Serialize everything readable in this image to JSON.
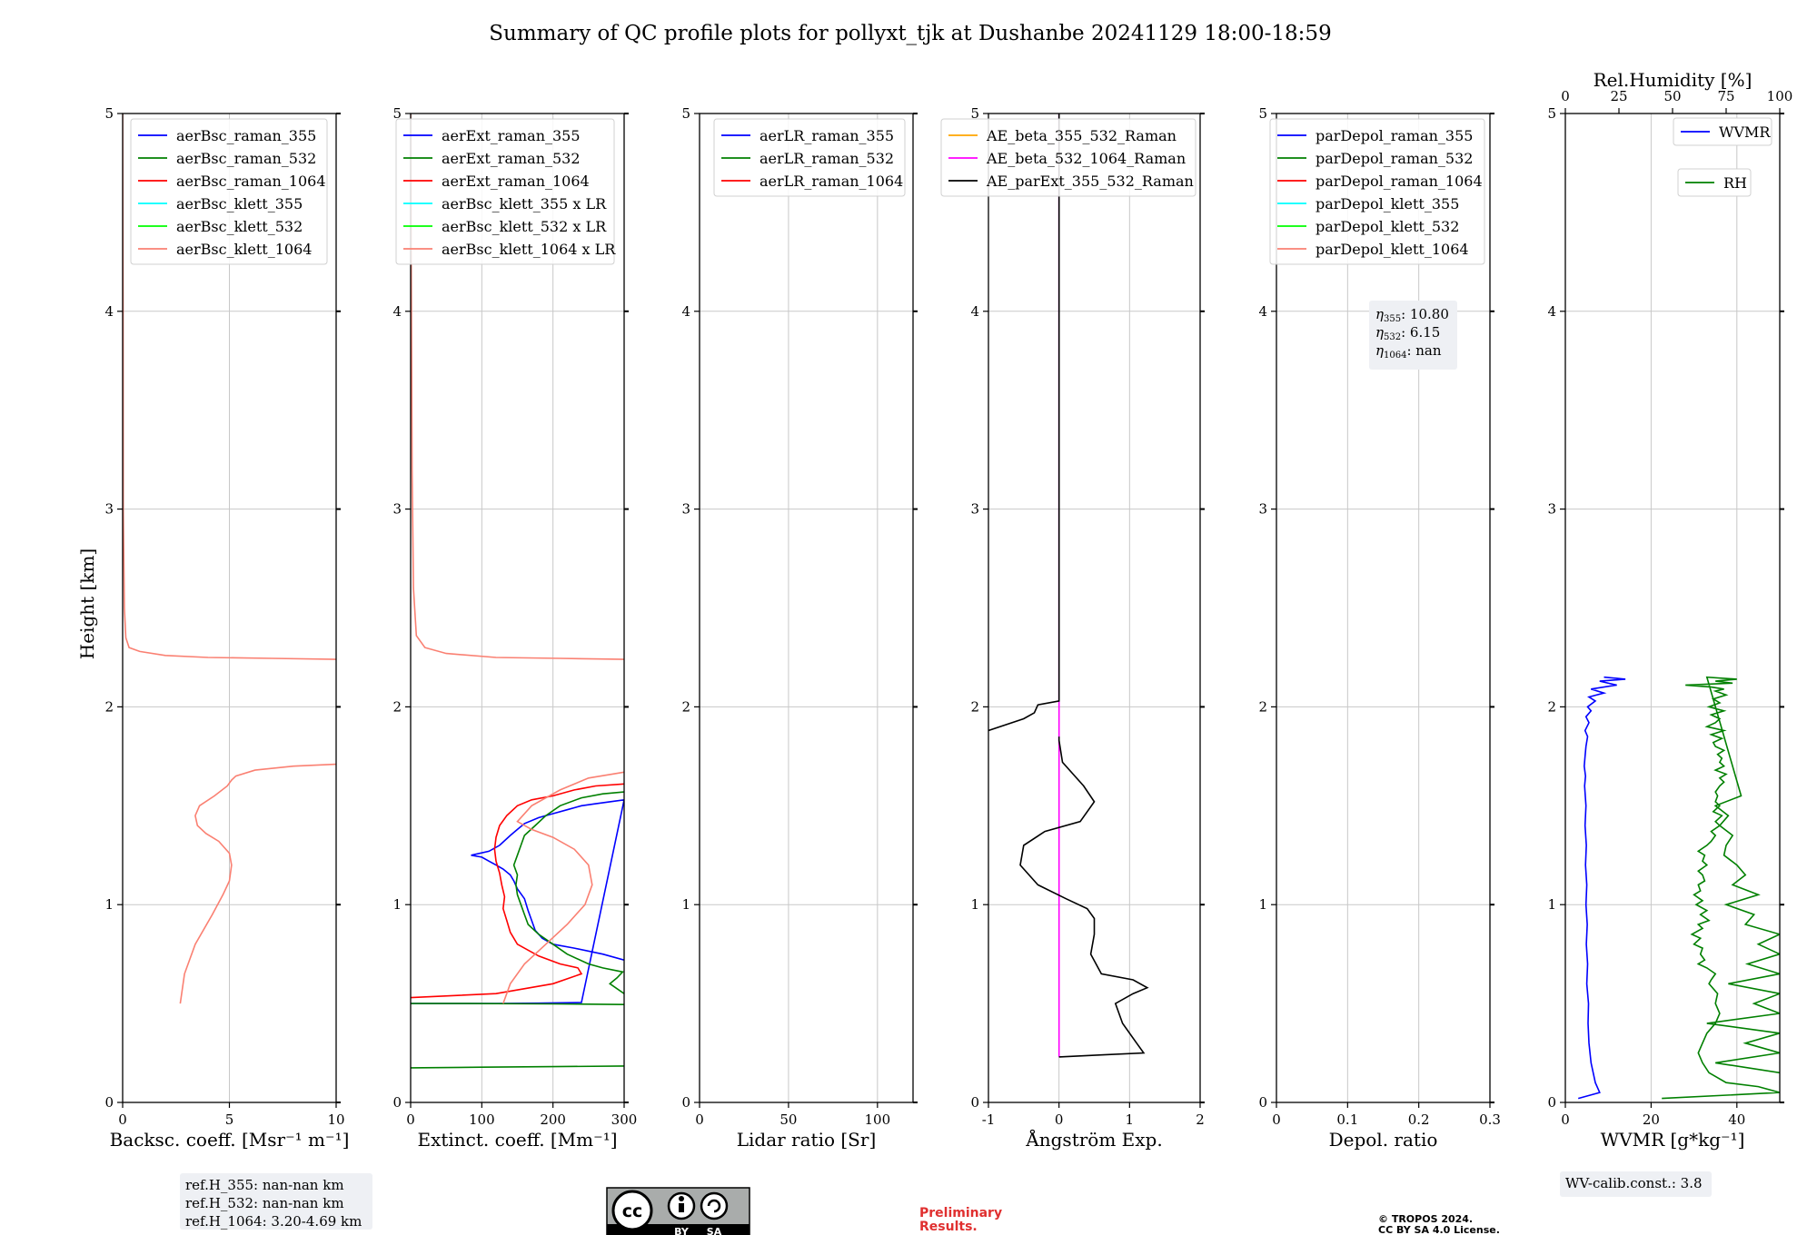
{
  "figure": {
    "title": "Summary of QC profile plots for pollyxt_tjk at Dushanbe 20241129 18:00-18:59",
    "ylabel": "Height [km]",
    "preliminary": "Preliminary\nResults.",
    "copyright": "© TROPOS 2024.\nCC BY SA 4.0 License.",
    "license_badge": {
      "text": "cc",
      "by": "BY",
      "sa": "SA"
    },
    "colors": {
      "blue": "#0000ff",
      "green": "#008000",
      "red": "#ff0000",
      "cyan": "#00ffff",
      "lime": "#00ff00",
      "salmon": "#fa8072",
      "orange": "#ffa500",
      "magenta": "#ff00ff",
      "black": "#000000",
      "grid": "#c8c8c8",
      "infobox": "#eef0f4"
    }
  },
  "chart_data": [
    {
      "type": "line",
      "xlabel": "Backsc. coeff. [Msr⁻¹ m⁻¹]",
      "ylabel": "Height [km]",
      "xlim": [
        0,
        10
      ],
      "ylim": [
        0,
        5
      ],
      "xticks": [
        0,
        5,
        10
      ],
      "yticks": [
        0,
        1,
        2,
        3,
        4,
        5
      ],
      "grid": true,
      "legend_position": "top-left",
      "series": [
        {
          "name": "aerBsc_raman_355",
          "color": "blue",
          "x": [],
          "y": []
        },
        {
          "name": "aerBsc_raman_532",
          "color": "green",
          "x": [],
          "y": []
        },
        {
          "name": "aerBsc_raman_1064",
          "color": "red",
          "x": [],
          "y": []
        },
        {
          "name": "aerBsc_klett_355",
          "color": "cyan",
          "x": [],
          "y": []
        },
        {
          "name": "aerBsc_klett_532",
          "color": "lime",
          "x": [],
          "y": []
        },
        {
          "name": "aerBsc_klett_1064",
          "color": "salmon",
          "x": [
            2.7,
            2.9,
            3.4,
            4.2,
            4.7,
            5.0,
            5.1,
            5.0,
            4.5,
            3.9,
            3.5,
            3.4,
            3.6,
            4.3,
            4.9,
            5.1,
            5.3,
            6.2,
            8.0,
            10.0
          ],
          "y": [
            0.5,
            0.65,
            0.8,
            0.95,
            1.05,
            1.12,
            1.2,
            1.26,
            1.32,
            1.36,
            1.4,
            1.45,
            1.5,
            1.55,
            1.6,
            1.63,
            1.65,
            1.68,
            1.7,
            1.71
          ]
        },
        {
          "name": "aerBsc_klett_1064",
          "color": "salmon",
          "x": [
            10.0,
            7.0,
            4.0,
            2.0,
            0.8,
            0.3,
            0.15,
            0.08,
            0.03,
            0.02,
            0.0
          ],
          "y": [
            2.24,
            2.245,
            2.25,
            2.26,
            2.28,
            2.3,
            2.35,
            2.5,
            3.0,
            4.0,
            5.0
          ]
        }
      ],
      "info_box": [
        "ref.H_355: nan-nan km",
        "ref.H_532: nan-nan km",
        "ref.H_1064: 3.20-4.69 km"
      ]
    },
    {
      "type": "line",
      "xlabel": "Extinct. coeff. [Mm⁻¹]",
      "xlim": [
        0,
        300
      ],
      "ylim": [
        0,
        5
      ],
      "xticks": [
        0,
        100,
        200,
        300
      ],
      "yticks": [
        0,
        1,
        2,
        3,
        4,
        5
      ],
      "grid": true,
      "legend_position": "top-left",
      "series": [
        {
          "name": "aerExt_raman_355",
          "color": "blue",
          "x": [
            300,
            270,
            230,
            200,
            185,
            175,
            170,
            165,
            160,
            150,
            145,
            140,
            130,
            120,
            110,
            100,
            85,
            110,
            125,
            140,
            150,
            160,
            180,
            200,
            220,
            240,
            260,
            280,
            300,
            240,
            180,
            120,
            60,
            0
          ],
          "y": [
            0.72,
            0.75,
            0.78,
            0.8,
            0.83,
            0.87,
            0.92,
            0.97,
            1.03,
            1.08,
            1.12,
            1.15,
            1.18,
            1.2,
            1.22,
            1.24,
            1.25,
            1.27,
            1.3,
            1.35,
            1.38,
            1.41,
            1.44,
            1.46,
            1.48,
            1.5,
            1.51,
            1.52,
            1.53,
            0.505,
            0.502,
            0.5,
            0.5,
            0.5
          ]
        },
        {
          "name": "aerExt_raman_532",
          "color": "green",
          "x": [
            300,
            280,
            290,
            298,
            270,
            250,
            220,
            200,
            180,
            165,
            160,
            155,
            150,
            148,
            150,
            145,
            150,
            155,
            160,
            175,
            190,
            210,
            240,
            270,
            300
          ],
          "y": [
            0.55,
            0.6,
            0.63,
            0.66,
            0.68,
            0.7,
            0.75,
            0.8,
            0.85,
            0.9,
            0.95,
            1.0,
            1.05,
            1.1,
            1.15,
            1.2,
            1.25,
            1.3,
            1.35,
            1.4,
            1.45,
            1.5,
            1.54,
            1.56,
            1.57
          ]
        },
        {
          "name": "aerExt_raman_1064",
          "color": "red",
          "x": [
            0,
            120,
            200,
            240,
            235,
            210,
            180,
            150,
            140,
            135,
            130,
            132,
            128,
            125,
            120,
            118,
            120,
            125,
            135,
            150,
            170,
            200,
            230,
            260,
            300
          ],
          "y": [
            0.53,
            0.55,
            0.6,
            0.65,
            0.68,
            0.7,
            0.74,
            0.8,
            0.86,
            0.92,
            0.98,
            1.04,
            1.1,
            1.16,
            1.22,
            1.28,
            1.34,
            1.4,
            1.45,
            1.5,
            1.53,
            1.55,
            1.58,
            1.6,
            1.61
          ]
        },
        {
          "name": "aerExt_raman_532",
          "color": "green",
          "x": [
            0,
            100,
            200,
            300
          ],
          "y": [
            0.175,
            0.178,
            0.181,
            0.184
          ]
        },
        {
          "name": "aerExt_raman_532",
          "color": "green",
          "x": [
            0,
            80,
            200,
            300
          ],
          "y": [
            0.5,
            0.5,
            0.498,
            0.495
          ]
        },
        {
          "name": "aerBsc_klett_355 x LR",
          "color": "cyan",
          "x": [],
          "y": []
        },
        {
          "name": "aerBsc_klett_532 x LR",
          "color": "lime",
          "x": [],
          "y": []
        },
        {
          "name": "aerBsc_klett_1064 x LR",
          "color": "salmon",
          "x": [
            130,
            140,
            160,
            190,
            220,
            245,
            255,
            250,
            230,
            200,
            170,
            150,
            170,
            210,
            250,
            300
          ],
          "y": [
            0.5,
            0.6,
            0.7,
            0.8,
            0.9,
            1.0,
            1.1,
            1.2,
            1.28,
            1.34,
            1.38,
            1.42,
            1.5,
            1.58,
            1.64,
            1.67
          ]
        },
        {
          "name": "aerBsc_klett_1064 x LR",
          "color": "salmon",
          "x": [
            300,
            210,
            120,
            50,
            20,
            8,
            4,
            2,
            0
          ],
          "y": [
            2.24,
            2.245,
            2.25,
            2.27,
            2.3,
            2.36,
            2.6,
            3.2,
            5.0
          ]
        }
      ]
    },
    {
      "type": "line",
      "xlabel": "Lidar ratio [Sr]",
      "xlim": [
        0,
        120
      ],
      "ylim": [
        0,
        5
      ],
      "xticks": [
        0,
        50,
        100
      ],
      "yticks": [
        0,
        1,
        2,
        3,
        4,
        5
      ],
      "grid": true,
      "legend_position": "top-left",
      "series": [
        {
          "name": "aerLR_raman_355",
          "color": "blue",
          "x": [],
          "y": []
        },
        {
          "name": "aerLR_raman_532",
          "color": "green",
          "x": [],
          "y": []
        },
        {
          "name": "aerLR_raman_1064",
          "color": "red",
          "x": [],
          "y": []
        }
      ]
    },
    {
      "type": "line",
      "xlabel": "Ångström Exp.",
      "xlim": [
        -1,
        2
      ],
      "ylim": [
        0,
        5
      ],
      "xticks": [
        -1,
        0,
        1,
        2
      ],
      "yticks": [
        0,
        1,
        2,
        3,
        4,
        5
      ],
      "grid": true,
      "legend_position": "top-left",
      "series": [
        {
          "name": "AE_beta_355_532_Raman",
          "color": "orange",
          "x": [],
          "y": []
        },
        {
          "name": "AE_beta_532_1064_Raman",
          "color": "magenta",
          "x": [
            0,
            0
          ],
          "y": [
            0.23,
            5.0
          ]
        },
        {
          "name": "AE_parExt_355_532_Raman",
          "color": "black",
          "x": [
            0,
            0.6,
            1.2,
            1.1,
            0.9,
            0.85,
            0.8,
            1.05,
            1.25,
            1.05,
            0.6,
            0.45,
            0.5,
            0.5,
            0.4,
            0.1,
            -0.3,
            -0.55,
            -0.5,
            -0.2,
            0.3,
            0.5,
            0.35,
            0.05,
            0,
            0
          ],
          "y": [
            0.23,
            0.24,
            0.25,
            0.3,
            0.4,
            0.45,
            0.5,
            0.55,
            0.58,
            0.62,
            0.65,
            0.75,
            0.85,
            0.93,
            0.98,
            1.03,
            1.1,
            1.2,
            1.3,
            1.37,
            1.42,
            1.52,
            1.6,
            1.72,
            1.83,
            1.85
          ]
        },
        {
          "name": "AE_parExt_355_532_Raman",
          "color": "black",
          "x": [
            -1,
            -0.5,
            -0.35,
            -0.3,
            0,
            0
          ],
          "y": [
            1.88,
            1.94,
            1.97,
            2.01,
            2.03,
            5.0
          ]
        }
      ]
    },
    {
      "type": "line",
      "xlabel": "Depol. ratio",
      "xlim": [
        0,
        0.3
      ],
      "ylim": [
        0,
        5
      ],
      "xticks": [
        0.0,
        0.1,
        0.2,
        0.3
      ],
      "yticks": [
        0,
        1,
        2,
        3,
        4,
        5
      ],
      "grid": true,
      "legend_position": "top-left",
      "series": [
        {
          "name": "parDepol_raman_355",
          "color": "blue",
          "x": [],
          "y": []
        },
        {
          "name": "parDepol_raman_532",
          "color": "green",
          "x": [],
          "y": []
        },
        {
          "name": "parDepol_raman_1064",
          "color": "red",
          "x": [],
          "y": []
        },
        {
          "name": "parDepol_klett_355",
          "color": "cyan",
          "x": [],
          "y": []
        },
        {
          "name": "parDepol_klett_532",
          "color": "lime",
          "x": [],
          "y": []
        },
        {
          "name": "parDepol_klett_1064",
          "color": "salmon",
          "x": [],
          "y": []
        }
      ],
      "info_box": [
        {
          "sym": "η",
          "sub": "355",
          "val": ": 10.80"
        },
        {
          "sym": "η",
          "sub": "532",
          "val": ": 6.15"
        },
        {
          "sym": "η",
          "sub": "1064",
          "val": ": nan"
        }
      ]
    },
    {
      "type": "line",
      "xlabel": "WVMR [g*kg⁻¹]",
      "xlim": [
        0,
        50
      ],
      "ylim": [
        0,
        5
      ],
      "xticks": [
        0,
        20,
        40
      ],
      "yticks": [
        0,
        1,
        2,
        3,
        4,
        5
      ],
      "x2label": "Rel.Humidity [%]",
      "x2lim": [
        0,
        100
      ],
      "x2ticks": [
        0,
        25,
        50,
        75,
        100
      ],
      "grid": true,
      "legend_position": "top-right",
      "series": [
        {
          "name": "WVMR",
          "color": "blue",
          "axis": "x",
          "x": [
            3,
            8,
            7,
            6,
            5.5,
            5.3,
            5.4,
            5,
            5.2,
            4.9,
            5.1,
            4.8,
            5,
            4.7,
            4.9,
            4.6,
            4.8,
            4.5,
            4.7,
            4.4,
            4.6,
            4.8,
            5.2,
            4.6,
            5.5,
            4.8,
            6,
            5.2,
            7,
            5.5,
            9,
            6,
            12,
            8,
            14,
            9
          ],
          "y": [
            0.02,
            0.05,
            0.1,
            0.2,
            0.3,
            0.4,
            0.5,
            0.6,
            0.7,
            0.8,
            0.9,
            1.0,
            1.1,
            1.2,
            1.3,
            1.4,
            1.5,
            1.6,
            1.65,
            1.7,
            1.75,
            1.8,
            1.85,
            1.88,
            1.92,
            1.95,
            1.98,
            2.0,
            2.03,
            2.05,
            2.07,
            2.09,
            2.11,
            2.13,
            2.14,
            2.15
          ]
        },
        {
          "name": "RH",
          "color": "green",
          "axis": "x2",
          "x": [
            45,
            100,
            90,
            75,
            67,
            64,
            62,
            64,
            66,
            70,
            72,
            70,
            71,
            67,
            68,
            70,
            66,
            62,
            65,
            63,
            64,
            60,
            63,
            59,
            64,
            62,
            67,
            63,
            66,
            61,
            64,
            60,
            63,
            62,
            65,
            64,
            62,
            66,
            64,
            65,
            62,
            66,
            68,
            70,
            68,
            72,
            70,
            73,
            69,
            72,
            70,
            71,
            70,
            72,
            74,
            72,
            75,
            70,
            74,
            72,
            73,
            71,
            74,
            70,
            69,
            73,
            68,
            74,
            66,
            70,
            72,
            68,
            74,
            67,
            72,
            69,
            75,
            70,
            74,
            68,
            56,
            78,
            70,
            80,
            66,
            82,
            70,
            76,
            72,
            78,
            75,
            74,
            80,
            84,
            78,
            90,
            75,
            88,
            84,
            100,
            90,
            100,
            85,
            100,
            76,
            100,
            88,
            100,
            66,
            100,
            84,
            100,
            70,
            100
          ],
          "y": [
            0.02,
            0.05,
            0.08,
            0.1,
            0.15,
            0.2,
            0.25,
            0.3,
            0.35,
            0.4,
            0.45,
            0.5,
            0.55,
            0.6,
            0.62,
            0.65,
            0.68,
            0.7,
            0.72,
            0.75,
            0.78,
            0.8,
            0.83,
            0.85,
            0.88,
            0.9,
            0.92,
            0.95,
            0.97,
            1.0,
            1.02,
            1.05,
            1.07,
            1.1,
            1.12,
            1.15,
            1.17,
            1.2,
            1.22,
            1.25,
            1.27,
            1.3,
            1.32,
            1.35,
            1.37,
            1.4,
            1.42,
            1.45,
            1.47,
            1.5,
            1.52,
            1.55,
            1.57,
            1.6,
            1.62,
            1.64,
            1.66,
            1.68,
            1.7,
            1.72,
            1.74,
            1.76,
            1.78,
            1.8,
            1.82,
            1.84,
            1.86,
            1.88,
            1.9,
            1.92,
            1.94,
            1.96,
            1.98,
            2.0,
            2.02,
            2.04,
            2.06,
            2.08,
            2.09,
            2.1,
            2.11,
            2.12,
            2.13,
            2.14,
            2.15,
            1.55,
            1.5,
            1.45,
            1.4,
            1.35,
            1.3,
            1.25,
            1.2,
            1.15,
            1.1,
            1.05,
            1.0,
            0.95,
            0.9,
            0.85,
            0.8,
            0.75,
            0.7,
            0.65,
            0.6,
            0.55,
            0.5,
            0.45,
            0.4,
            0.35,
            0.3,
            0.25,
            0.2,
            0.15
          ]
        }
      ],
      "info_box": [
        "WV-calib.const.: 3.8"
      ]
    }
  ]
}
